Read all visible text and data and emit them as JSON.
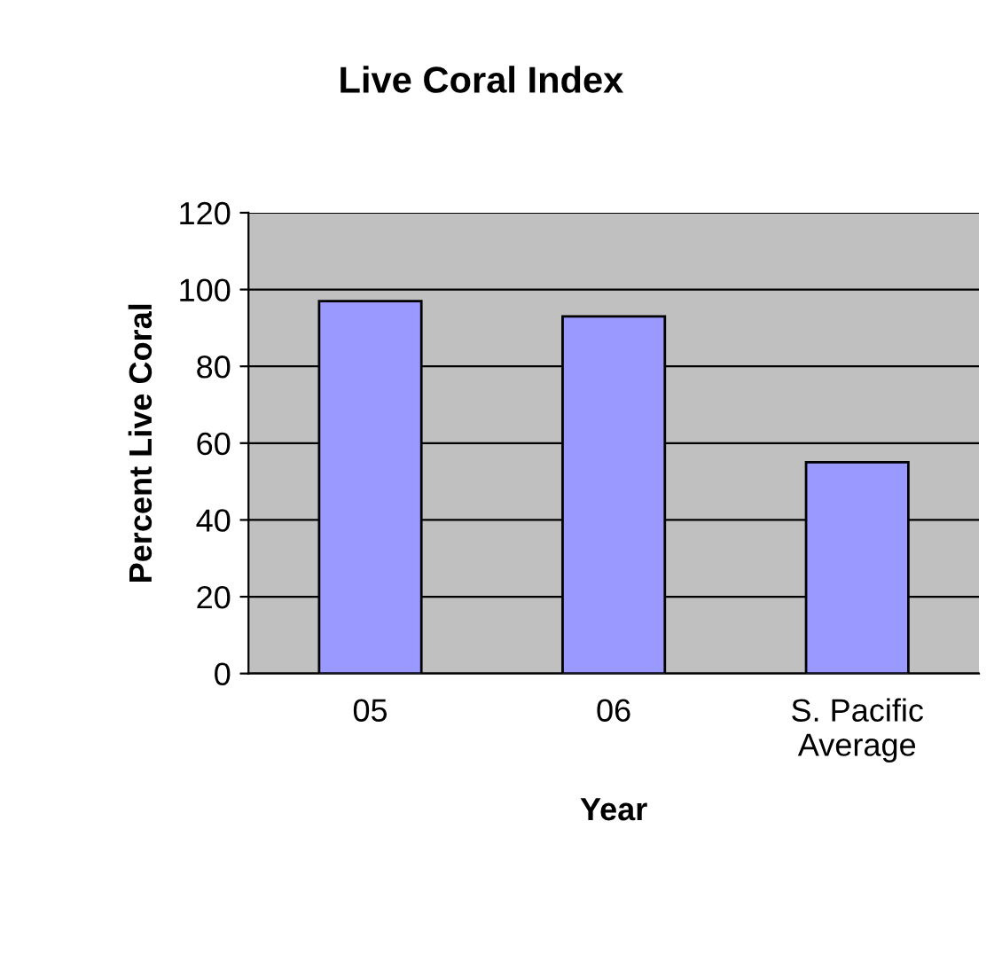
{
  "chart_data": {
    "type": "bar",
    "title": "Live Coral Index",
    "xlabel": "Year",
    "ylabel": "Percent Live Coral",
    "categories": [
      "05",
      "06",
      "S. Pacific\nAverage"
    ],
    "series": [
      {
        "color": "#9999ff",
        "values": [
          97,
          93,
          55
        ]
      }
    ],
    "ylim": [
      0,
      120
    ],
    "yticks": [
      0,
      20,
      40,
      60,
      80,
      100,
      120
    ],
    "grid": "y",
    "legend": false
  }
}
